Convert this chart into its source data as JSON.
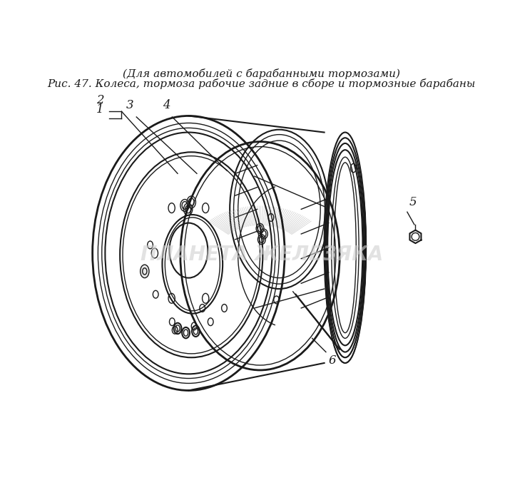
{
  "title_line1": "Рис. 47. Колеса, тормоза рабочие задние в сборе и тормозные барабаны",
  "title_line2": "(Для автомобилей с барабанными тормозами)",
  "watermark": "ПЛАНЕТА ЖЕЛЕЗЯКА",
  "bg_color": "#ffffff",
  "line_color": "#1a1a1a",
  "watermark_color": "#d0d0d0",
  "title_fontsize": 11.0,
  "label_fontsize": 12,
  "watermark_fontsize": 20
}
